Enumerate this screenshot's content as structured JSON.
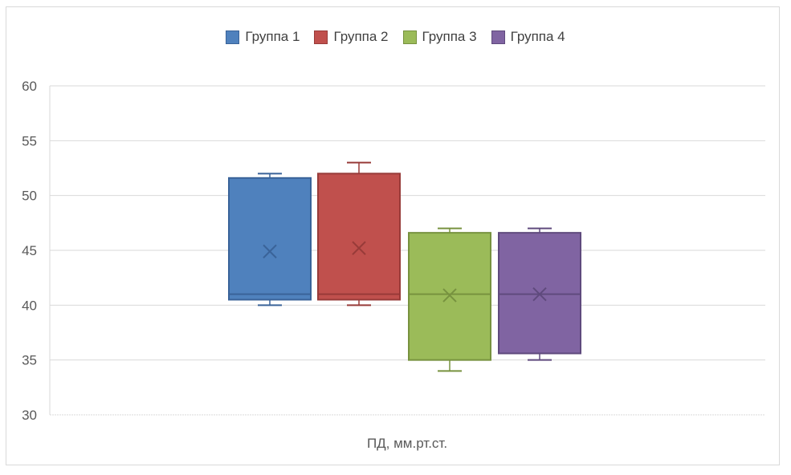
{
  "chart_data": {
    "type": "boxplot",
    "title": "",
    "xlabel": "ПД, мм.рт.ст.",
    "ylabel": "",
    "ylim": [
      30,
      60
    ],
    "yticks": [
      30,
      35,
      40,
      45,
      50,
      55,
      60
    ],
    "grid": true,
    "legend_position": "top",
    "series": [
      {
        "name": "Группа 1",
        "color": "#4f81bd",
        "edge": "#3a6399",
        "min": 40,
        "q1": 40.5,
        "median": 41,
        "q3": 51.6,
        "max": 52,
        "mean": 44.9
      },
      {
        "name": "Группа 2",
        "color": "#c0504d",
        "edge": "#983b39",
        "min": 40,
        "q1": 40.5,
        "median": 41,
        "q3": 52,
        "max": 53,
        "mean": 45.2
      },
      {
        "name": "Группа 3",
        "color": "#9bbb59",
        "edge": "#77923f",
        "min": 34,
        "q1": 35,
        "median": 41,
        "q3": 46.6,
        "max": 47,
        "mean": 40.9
      },
      {
        "name": "Группа 4",
        "color": "#8064a2",
        "edge": "#5f4a7d",
        "min": 35,
        "q1": 35.6,
        "median": 41,
        "q3": 46.6,
        "max": 47,
        "mean": 41
      }
    ]
  }
}
